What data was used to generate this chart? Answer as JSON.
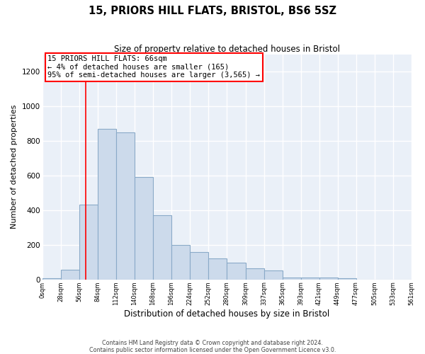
{
  "title1": "15, PRIORS HILL FLATS, BRISTOL, BS6 5SZ",
  "title2": "Size of property relative to detached houses in Bristol",
  "xlabel": "Distribution of detached houses by size in Bristol",
  "ylabel": "Number of detached properties",
  "bar_color": "#ccdaeb",
  "bar_edge_color": "#8aaac8",
  "bg_color": "#eaf0f8",
  "grid_color": "#ffffff",
  "bins": [
    0,
    28,
    56,
    84,
    112,
    140,
    168,
    196,
    224,
    252,
    280,
    309,
    337,
    365,
    393,
    421,
    449,
    477,
    505,
    533,
    561
  ],
  "counts": [
    5,
    55,
    430,
    870,
    850,
    590,
    370,
    200,
    160,
    120,
    95,
    65,
    50,
    10,
    10,
    10,
    5,
    0,
    0,
    0
  ],
  "property_sqm": 66,
  "annotation_line1": "15 PRIORS HILL FLATS: 66sqm",
  "annotation_line2": "← 4% of detached houses are smaller (165)",
  "annotation_line3": "95% of semi-detached houses are larger (3,565) →",
  "ylim_max": 1300,
  "yticks": [
    0,
    200,
    400,
    600,
    800,
    1000,
    1200
  ],
  "footer1": "Contains HM Land Registry data © Crown copyright and database right 2024.",
  "footer2": "Contains public sector information licensed under the Open Government Licence v3.0."
}
